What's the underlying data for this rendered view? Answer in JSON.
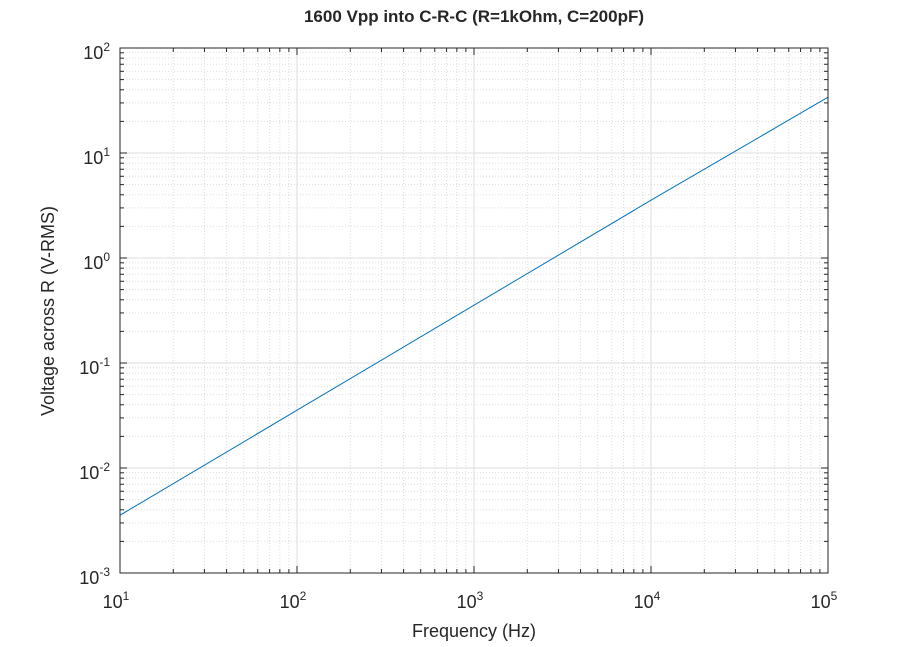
{
  "chart_data": {
    "type": "line",
    "title": "1600 Vpp into C-R-C (R=1kOhm, C=200pF)",
    "xlabel": "Frequency (Hz)",
    "ylabel": "Voltage across R (V-RMS)",
    "xscale": "log",
    "yscale": "log",
    "xlim": [
      10,
      100000
    ],
    "ylim": [
      0.001,
      100
    ],
    "grid": "major and minor",
    "legend": "none",
    "xticks": [
      {
        "base": "10",
        "exp": "1"
      },
      {
        "base": "10",
        "exp": "2"
      },
      {
        "base": "10",
        "exp": "3"
      },
      {
        "base": "10",
        "exp": "4"
      },
      {
        "base": "10",
        "exp": "5"
      }
    ],
    "yticks": [
      {
        "base": "10",
        "exp": "-3"
      },
      {
        "base": "10",
        "exp": "-2"
      },
      {
        "base": "10",
        "exp": "-1"
      },
      {
        "base": "10",
        "exp": "0"
      },
      {
        "base": "10",
        "exp": "1"
      },
      {
        "base": "10",
        "exp": "2"
      }
    ],
    "series": [
      {
        "color": "#0072bd",
        "x": [
          10,
          100,
          1000,
          10000,
          100000
        ],
        "y": [
          0.00355,
          0.0355,
          0.355,
          3.55,
          34
        ]
      }
    ]
  }
}
